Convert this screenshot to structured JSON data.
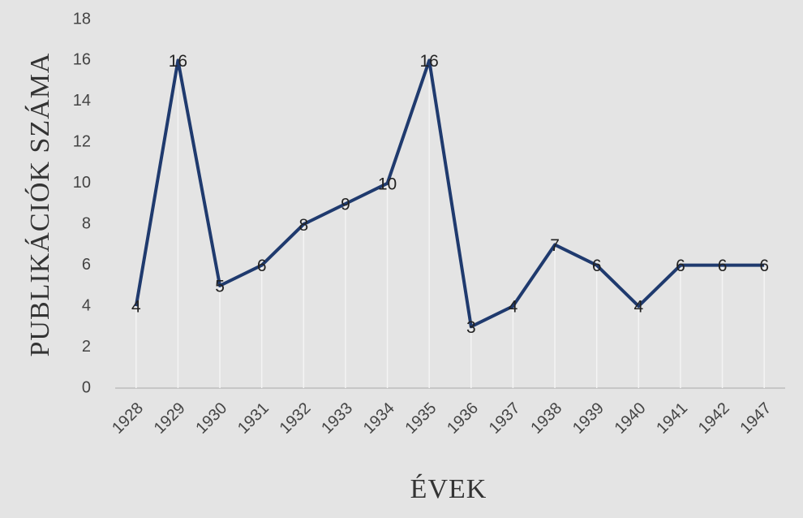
{
  "chart_data": {
    "type": "line",
    "x_label": "ÉVEK",
    "y_label": "PUBLIKÁCIÓK SZÁMA",
    "categories": [
      "1928",
      "1929",
      "1930",
      "1931",
      "1932",
      "1933",
      "1934",
      "1935",
      "1936",
      "1937",
      "1938",
      "1939",
      "1940",
      "1941",
      "1942",
      "1947"
    ],
    "values": [
      4,
      16,
      5,
      6,
      8,
      9,
      10,
      16,
      3,
      4,
      7,
      6,
      4,
      6,
      6,
      6
    ],
    "color": "#1f3a6e",
    "ylim": [
      0,
      18
    ],
    "yticks": [
      0,
      2,
      4,
      6,
      8,
      10,
      12,
      14,
      16,
      18
    ]
  }
}
